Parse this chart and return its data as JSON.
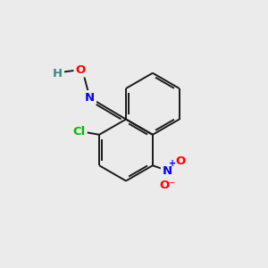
{
  "background_color": "#ebebeb",
  "bond_color": "#1a1a1a",
  "atom_colors": {
    "O": "#ff0000",
    "N": "#0000ff",
    "Cl": "#00bb00",
    "H": "#3a8888",
    "NO2_N": "#0000ff",
    "NO2_O1": "#ff0000",
    "NO2_O2": "#ff0000"
  },
  "font_size": 9.5,
  "figsize": [
    3.0,
    3.0
  ],
  "dpi": 100
}
